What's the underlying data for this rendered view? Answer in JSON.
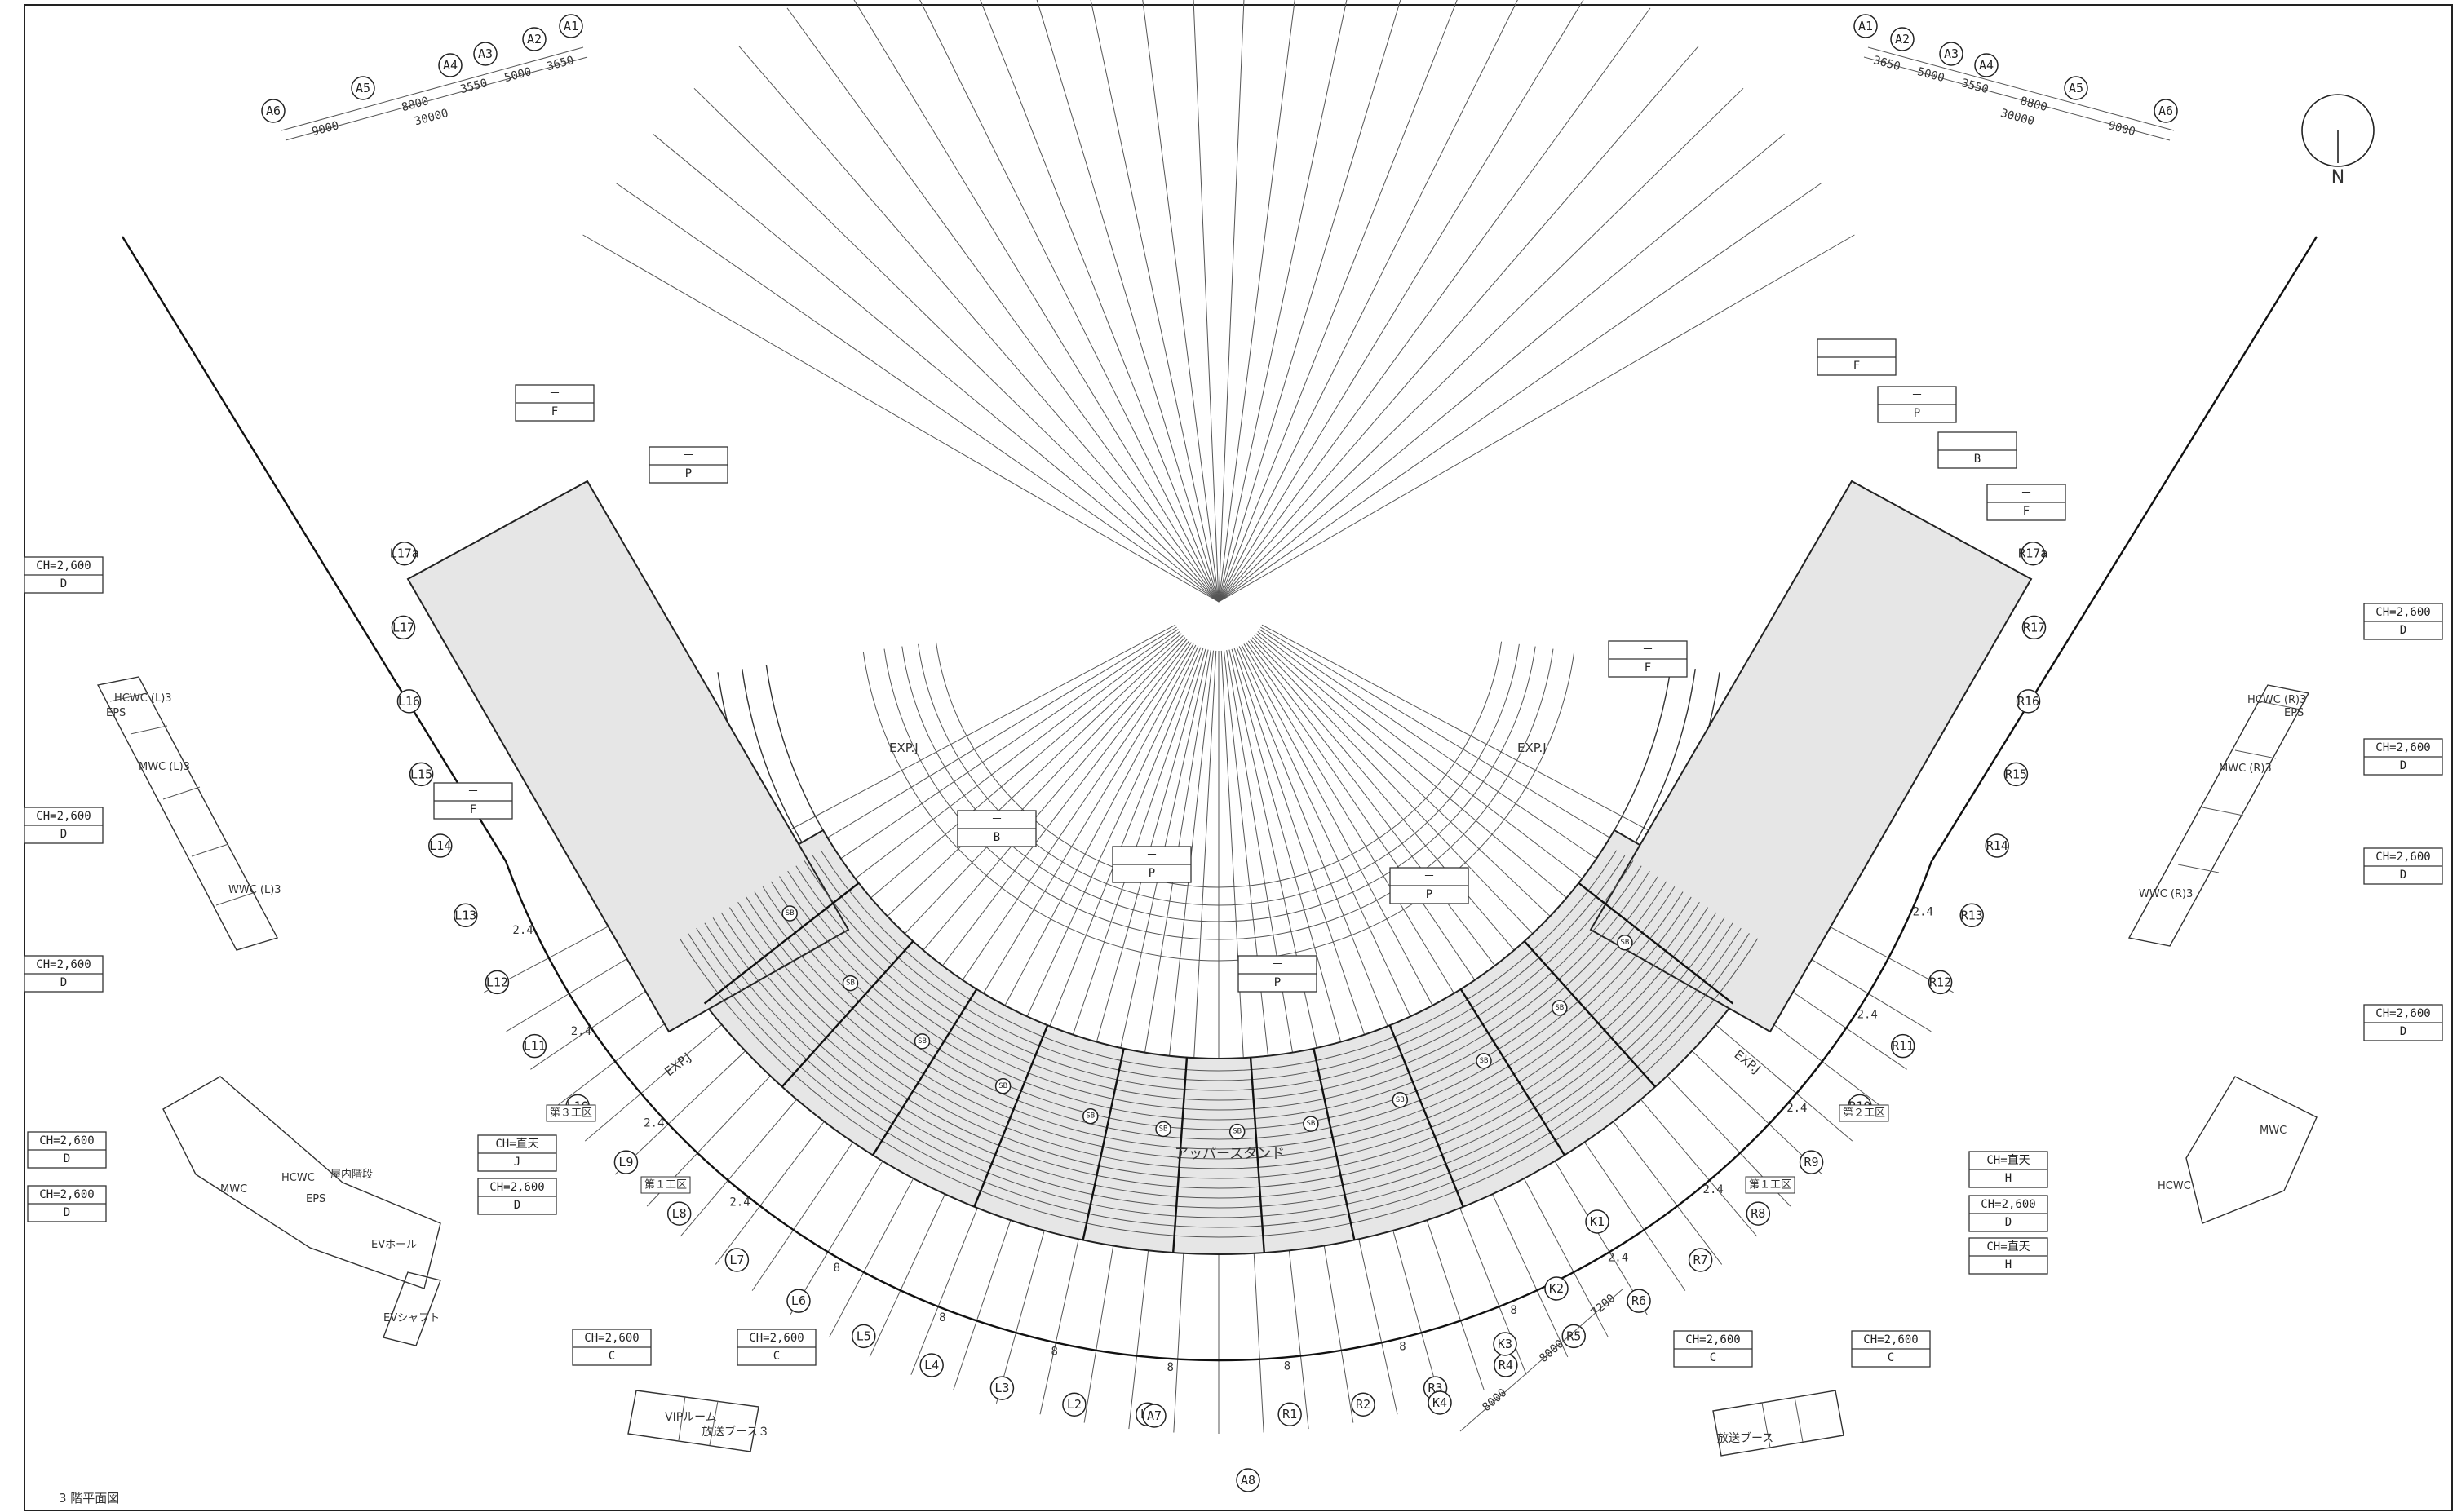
{
  "title": "3 階平面図",
  "north_label": "N",
  "rooms": {
    "upper_stand": "アッパースタンド",
    "exp_j": "EXP.J",
    "zone_1": "第１工区",
    "zone_2": "第２工区",
    "zone_3": "第３工区",
    "hcwc_l3": "HCWC (L)3",
    "mwc_l3": "MWC (L)3",
    "wwc_l3": "WWC (L)3",
    "eps": "EPS",
    "hcwc": "HCWC",
    "mwc": "MWC",
    "inner_stair": "屋内階段",
    "ev_hall": "EVホール",
    "ev_shaft": "EVシャフト",
    "vip_room": "VIPルーム",
    "broadcast_3": "放送ブース３",
    "broadcast": "放送ブース",
    "hcwc_r3": "HCWC (R)3",
    "mwc_r3": "MWC (R)3",
    "wwc_r3": "WWC (R)3",
    "sb": "SB"
  },
  "dims_left": [
    "9000",
    "8800",
    "30000",
    "3550",
    "5000",
    "3650"
  ],
  "dims_right": [
    "3650",
    "5000",
    "3550",
    "8800",
    "30000",
    "9000"
  ],
  "dims_bottom": [
    "8000",
    "8000",
    "7200"
  ],
  "tags": {
    "ch2600": "CH=2,600",
    "ch_open": "CH=直天",
    "dash": "－",
    "D": "D",
    "C": "C",
    "J": "J",
    "H": "H",
    "F": "F",
    "P": "P",
    "B": "B"
  },
  "grid": {
    "A": [
      "A1",
      "A2",
      "A3",
      "A4",
      "A5",
      "A6",
      "A7",
      "A8"
    ],
    "L": [
      "L1",
      "L2",
      "L3",
      "L4",
      "L5",
      "L6",
      "L7",
      "L8",
      "L9",
      "L10",
      "L11",
      "L12",
      "L13",
      "L14",
      "L15",
      "L16",
      "L17",
      "L17a"
    ],
    "R": [
      "R1",
      "R2",
      "R3",
      "R4",
      "R5",
      "R6",
      "R7",
      "R8",
      "R9",
      "R10",
      "R11",
      "R12",
      "R13",
      "R14",
      "R15",
      "R16",
      "R17",
      "R17a"
    ],
    "K": [
      "K1",
      "K2",
      "K3",
      "K4"
    ]
  },
  "spacing": {
    "p24": "2.4",
    "p8": "8"
  }
}
